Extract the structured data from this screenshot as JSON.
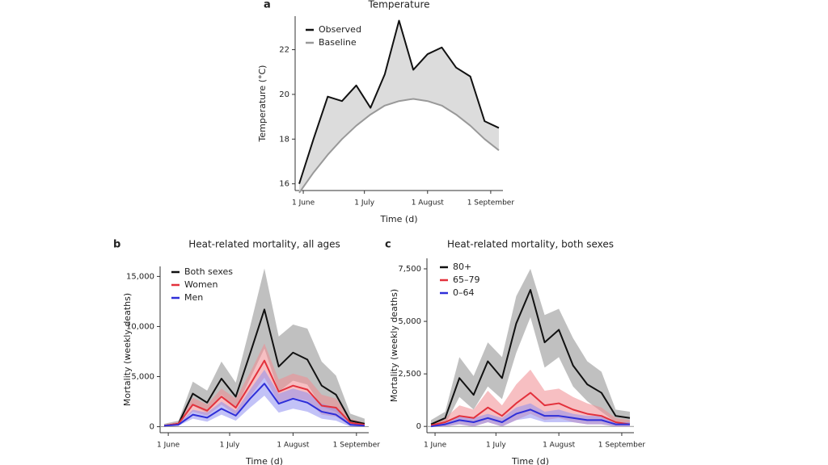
{
  "chart_data": [
    {
      "type": "line",
      "panel_label": "a",
      "title": "Temperature",
      "xlabel": "Time (d)",
      "ylabel": "Temperature (°C)",
      "x": [
        -2,
        5,
        12,
        19,
        26,
        33,
        40,
        47,
        54,
        61,
        68,
        75,
        82,
        89,
        96
      ],
      "xlim": [
        -4,
        98
      ],
      "xticks": [
        {
          "value": 0,
          "label": "1 June"
        },
        {
          "value": 30,
          "label": "1 July"
        },
        {
          "value": 61,
          "label": "1 August"
        },
        {
          "value": 92,
          "label": "1 September"
        }
      ],
      "ylim": [
        15.7,
        23.5
      ],
      "yticks": [
        16,
        18,
        20,
        22
      ],
      "shade_between_series": "#dcdcdc",
      "series": [
        {
          "name": "Observed",
          "color": "#111111",
          "values": [
            16.0,
            18.0,
            19.9,
            19.7,
            20.4,
            19.4,
            20.9,
            23.3,
            21.1,
            21.8,
            22.1,
            21.2,
            20.8,
            18.8,
            18.5
          ]
        },
        {
          "name": "Baseline",
          "color": "#999999",
          "values": [
            15.6,
            16.5,
            17.3,
            18.0,
            18.6,
            19.1,
            19.5,
            19.7,
            19.8,
            19.7,
            19.5,
            19.1,
            18.6,
            18.0,
            17.5
          ]
        }
      ]
    },
    {
      "type": "line",
      "panel_label": "b",
      "title": "Heat-related mortality, all ages",
      "xlabel": "Time (d)",
      "ylabel": "Mortality (weekly deaths)",
      "x": [
        -2,
        5,
        12,
        19,
        26,
        33,
        40,
        47,
        54,
        61,
        68,
        75,
        82,
        89,
        96
      ],
      "xlim": [
        -4,
        98
      ],
      "xticks": [
        {
          "value": 0,
          "label": "1 June"
        },
        {
          "value": 30,
          "label": "1 July"
        },
        {
          "value": 61,
          "label": "1 August"
        },
        {
          "value": 92,
          "label": "1 September"
        }
      ],
      "ylim": [
        -600,
        16000
      ],
      "yticks": [
        0,
        {
          "value": 5000,
          "label": "5,000"
        },
        {
          "value": 10000,
          "label": "10,000"
        },
        {
          "value": 15000,
          "label": "15,000"
        }
      ],
      "series": [
        {
          "name": "Both sexes",
          "color": "#111111",
          "band_color": "#8c8c8c",
          "values": [
            100,
            300,
            3300,
            2400,
            4800,
            3000,
            7300,
            11700,
            6000,
            7400,
            6700,
            4100,
            3200,
            600,
            300
          ],
          "lower": [
            0,
            100,
            2100,
            1400,
            3200,
            1800,
            4800,
            7800,
            3500,
            4600,
            4200,
            2000,
            1500,
            100,
            0
          ],
          "upper": [
            300,
            600,
            4500,
            3600,
            6500,
            4400,
            10000,
            15800,
            9000,
            10200,
            9800,
            6500,
            5100,
            1300,
            800
          ]
        },
        {
          "name": "Women",
          "color": "#e3313c",
          "band_color": "#f08a8f",
          "values": [
            100,
            300,
            2200,
            1600,
            3000,
            1900,
            4200,
            6600,
            3500,
            4100,
            3700,
            2100,
            1900,
            400,
            200
          ],
          "lower": [
            0,
            100,
            1500,
            1100,
            2200,
            1200,
            3000,
            4900,
            2400,
            2900,
            2600,
            1200,
            1000,
            100,
            0
          ],
          "upper": [
            200,
            500,
            2900,
            2200,
            3800,
            2800,
            5400,
            8300,
            4700,
            5300,
            4900,
            3200,
            2800,
            800,
            400
          ]
        },
        {
          "name": "Men",
          "color": "#2f2fd8",
          "band_color": "#8f8ff0",
          "values": [
            100,
            200,
            1200,
            900,
            1800,
            1100,
            2800,
            4300,
            2300,
            2800,
            2400,
            1500,
            1200,
            200,
            100
          ],
          "lower": [
            0,
            100,
            800,
            500,
            1200,
            600,
            1900,
            3100,
            1400,
            1800,
            1500,
            800,
            600,
            0,
            0
          ],
          "upper": [
            200,
            300,
            1700,
            1400,
            2500,
            1600,
            3700,
            5700,
            3300,
            3800,
            3400,
            2300,
            1900,
            500,
            300
          ]
        }
      ]
    },
    {
      "type": "line",
      "panel_label": "c",
      "title": "Heat-related mortality, both sexes",
      "xlabel": "Time (d)",
      "ylabel": "Mortality (weekly deaths)",
      "x": [
        -2,
        5,
        12,
        19,
        26,
        33,
        40,
        47,
        54,
        61,
        68,
        75,
        82,
        89,
        96
      ],
      "xlim": [
        -4,
        98
      ],
      "xticks": [
        {
          "value": 0,
          "label": "1 June"
        },
        {
          "value": 30,
          "label": "1 July"
        },
        {
          "value": 61,
          "label": "1 August"
        },
        {
          "value": 92,
          "label": "1 September"
        }
      ],
      "ylim": [
        -300,
        8000
      ],
      "yticks": [
        0,
        {
          "value": 2500,
          "label": "2,500"
        },
        {
          "value": 5000,
          "label": "5,000"
        },
        {
          "value": 7500,
          "label": "7,500"
        }
      ],
      "series": [
        {
          "name": "80+",
          "color": "#111111",
          "band_color": "#8c8c8c",
          "values": [
            100,
            400,
            2300,
            1500,
            3100,
            2300,
            4900,
            6500,
            4000,
            4600,
            2900,
            2000,
            1600,
            500,
            400
          ],
          "lower": [
            0,
            100,
            1400,
            800,
            1900,
            1300,
            3500,
            5200,
            2800,
            3300,
            1900,
            1200,
            700,
            200,
            100
          ],
          "upper": [
            300,
            700,
            3300,
            2400,
            4000,
            3300,
            6200,
            7500,
            5300,
            5600,
            4200,
            3100,
            2600,
            800,
            700
          ]
        },
        {
          "name": "65–79",
          "color": "#e3313c",
          "band_color": "#f08a8f",
          "values": [
            50,
            200,
            500,
            400,
            900,
            500,
            1100,
            1600,
            1000,
            1100,
            800,
            600,
            500,
            200,
            100
          ],
          "lower": [
            0,
            0,
            100,
            0,
            200,
            0,
            300,
            600,
            300,
            400,
            200,
            100,
            100,
            0,
            0
          ],
          "upper": [
            100,
            400,
            1000,
            800,
            1700,
            1000,
            2000,
            2700,
            1700,
            1800,
            1400,
            1100,
            900,
            400,
            300
          ]
        },
        {
          "name": "0–64",
          "color": "#2f2fd8",
          "band_color": "#8f8ff0",
          "values": [
            0,
            100,
            300,
            200,
            400,
            200,
            600,
            800,
            500,
            500,
            400,
            300,
            300,
            100,
            100
          ],
          "lower": [
            0,
            0,
            100,
            0,
            200,
            0,
            300,
            400,
            200,
            200,
            200,
            100,
            100,
            0,
            0
          ],
          "upper": [
            100,
            200,
            500,
            400,
            600,
            400,
            900,
            1100,
            700,
            800,
            600,
            500,
            500,
            200,
            200
          ]
        }
      ]
    }
  ]
}
